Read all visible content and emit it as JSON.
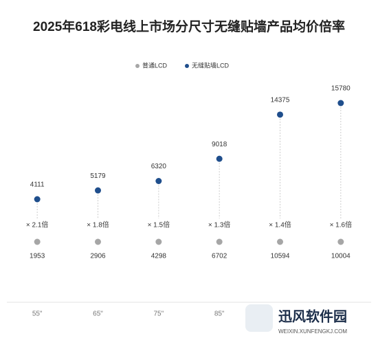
{
  "chart_data": {
    "type": "dot",
    "title": "2025年618彩电线上市场分尺寸无缝贴墙产品均价倍率",
    "categories": [
      "55\"",
      "65\"",
      "75\"",
      "85\"",
      null,
      null
    ],
    "series": [
      {
        "name": "普通LCD",
        "color": "#a6a6a6",
        "values": [
          1953,
          2906,
          4298,
          6702,
          10594,
          10004
        ]
      },
      {
        "name": "无缝贴墙LCD",
        "color": "#1f4e8c",
        "values": [
          4111,
          5179,
          6320,
          9018,
          14375,
          15780
        ]
      }
    ],
    "annotations": [
      "× 2.1倍",
      "× 1.8倍",
      "× 1.5倍",
      "× 1.3倍",
      "× 1.4倍",
      "× 1.6倍"
    ],
    "legend": "top"
  },
  "watermark": {
    "name": "迅风软件园",
    "url": "WEIXIN.XUNFENGKJ.COM"
  }
}
